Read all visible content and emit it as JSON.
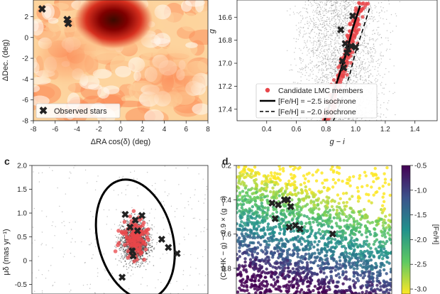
{
  "panel_labels": [
    "c",
    "d"
  ],
  "chart_data": [
    {
      "id": "a",
      "type": "heatmap",
      "xlabel": "ΔRA cos(δ) (deg)",
      "ylabel": "ΔDec. (deg)",
      "xlim": [
        -8,
        8
      ],
      "ylim": [
        -8,
        3.6
      ],
      "xticks": [
        "-8",
        "-6",
        "-4",
        "-2",
        "0",
        "2",
        "4",
        "6",
        "8"
      ],
      "yticks": [
        "2",
        "0",
        "-2",
        "-4",
        "-6",
        "-8"
      ],
      "colormap": [
        "#fff7ec",
        "#fdd49e",
        "#fc8d59",
        "#d7301f",
        "#7f0000",
        "#3a0a00"
      ],
      "legend": {
        "label": "Observed stars",
        "placement": "bottom-left"
      },
      "marker_color": "#1f2bdb",
      "observed_stars": [
        {
          "x": -7.2,
          "y": 2.7
        },
        {
          "x": -4.9,
          "y": 1.7
        },
        {
          "x": -4.8,
          "y": 1.3
        }
      ]
    },
    {
      "id": "b",
      "type": "scatter",
      "xlabel": "g − i",
      "ylabel": "g",
      "xlim": [
        0.2,
        1.55
      ],
      "ylim": [
        17.5,
        16.45
      ],
      "xticks": [
        0.4,
        0.6,
        0.8,
        1.0,
        1.2,
        1.4
      ],
      "yticks": [
        16.6,
        16.8,
        17.0,
        17.2,
        17.4
      ],
      "legend_placement": "bottom-right",
      "series": [
        {
          "name": "Candidate LMC members",
          "color": "#e8464a"
        },
        {
          "name": "[Fe/H] = −2.5 isochrone",
          "color": "#000000",
          "style": "solid"
        },
        {
          "name": "[Fe/H] = −2.0 isochrone",
          "color": "#000000",
          "style": "dashed"
        }
      ],
      "isochrone_solid": [
        {
          "x": 0.79,
          "y": 17.5
        },
        {
          "x": 0.84,
          "y": 17.3
        },
        {
          "x": 0.89,
          "y": 17.1
        },
        {
          "x": 0.94,
          "y": 16.9
        },
        {
          "x": 0.98,
          "y": 16.7
        },
        {
          "x": 1.03,
          "y": 16.5
        }
      ],
      "isochrone_dashed": [
        {
          "x": 0.85,
          "y": 17.5
        },
        {
          "x": 0.91,
          "y": 17.3
        },
        {
          "x": 0.96,
          "y": 17.1
        },
        {
          "x": 1.0,
          "y": 16.9
        },
        {
          "x": 1.05,
          "y": 16.7
        },
        {
          "x": 1.1,
          "y": 16.5
        }
      ],
      "observed_stars": [
        {
          "x": 0.98,
          "y": 16.59
        },
        {
          "x": 0.9,
          "y": 16.71
        },
        {
          "x": 0.93,
          "y": 16.83
        },
        {
          "x": 0.95,
          "y": 16.88
        },
        {
          "x": 0.97,
          "y": 16.85
        },
        {
          "x": 1.0,
          "y": 16.86
        },
        {
          "x": 0.94,
          "y": 16.91
        },
        {
          "x": 0.91,
          "y": 16.98
        },
        {
          "x": 0.92,
          "y": 17.04
        }
      ]
    },
    {
      "id": "c",
      "type": "scatter",
      "ylabel": "μδ (mas yr⁻¹)",
      "xlim": [
        -1,
        3
      ],
      "ylim": [
        -0.7,
        2.0
      ],
      "yticks": [
        "2.0",
        "1.5",
        "1.0",
        "0.5",
        "0",
        "-0.5"
      ],
      "ellipse": {
        "cx": 1.35,
        "cy": 0.45,
        "rx": 0.85,
        "ry": 1.28,
        "rotation_deg": -15
      },
      "observed_stars": [
        {
          "x": 1.12,
          "y": 0.97
        },
        {
          "x": 1.5,
          "y": 0.95
        },
        {
          "x": 1.35,
          "y": 0.85
        },
        {
          "x": 1.23,
          "y": 0.7
        },
        {
          "x": 1.4,
          "y": 0.63
        },
        {
          "x": 1.3,
          "y": 0.1
        },
        {
          "x": 1.28,
          "y": 0.2
        },
        {
          "x": 1.95,
          "y": 0.45
        },
        {
          "x": 2.1,
          "y": 0.28
        },
        {
          "x": 2.3,
          "y": 0.15
        },
        {
          "x": 1.05,
          "y": -0.35
        }
      ]
    },
    {
      "id": "d",
      "type": "scatter",
      "ylabel": "(CaHK − g) − 0.9 × (g − i)",
      "ylim": [
        0.2,
        0.95
      ],
      "yticks": [
        "0.2",
        "0.4",
        "0.6",
        "0.8"
      ],
      "colorbar": {
        "label": "[Fe/H]",
        "range": [
          -3.1,
          -0.5
        ],
        "ticks": [
          "-0.5",
          "-1.0",
          "-1.5",
          "-2.0",
          "-2.5",
          "-3.0"
        ],
        "colors": [
          "#440154",
          "#3b528b",
          "#21918c",
          "#5ec962",
          "#fde725"
        ]
      },
      "observed_stars": [
        {
          "x": 0.23,
          "y": 0.42
        },
        {
          "x": 0.27,
          "y": 0.43
        },
        {
          "x": 0.31,
          "y": 0.4
        },
        {
          "x": 0.33,
          "y": 0.4
        },
        {
          "x": 0.35,
          "y": 0.44
        },
        {
          "x": 0.25,
          "y": 0.51
        },
        {
          "x": 0.34,
          "y": 0.56
        },
        {
          "x": 0.38,
          "y": 0.55
        },
        {
          "x": 0.41,
          "y": 0.57
        },
        {
          "x": 0.62,
          "y": 0.6
        }
      ]
    }
  ]
}
